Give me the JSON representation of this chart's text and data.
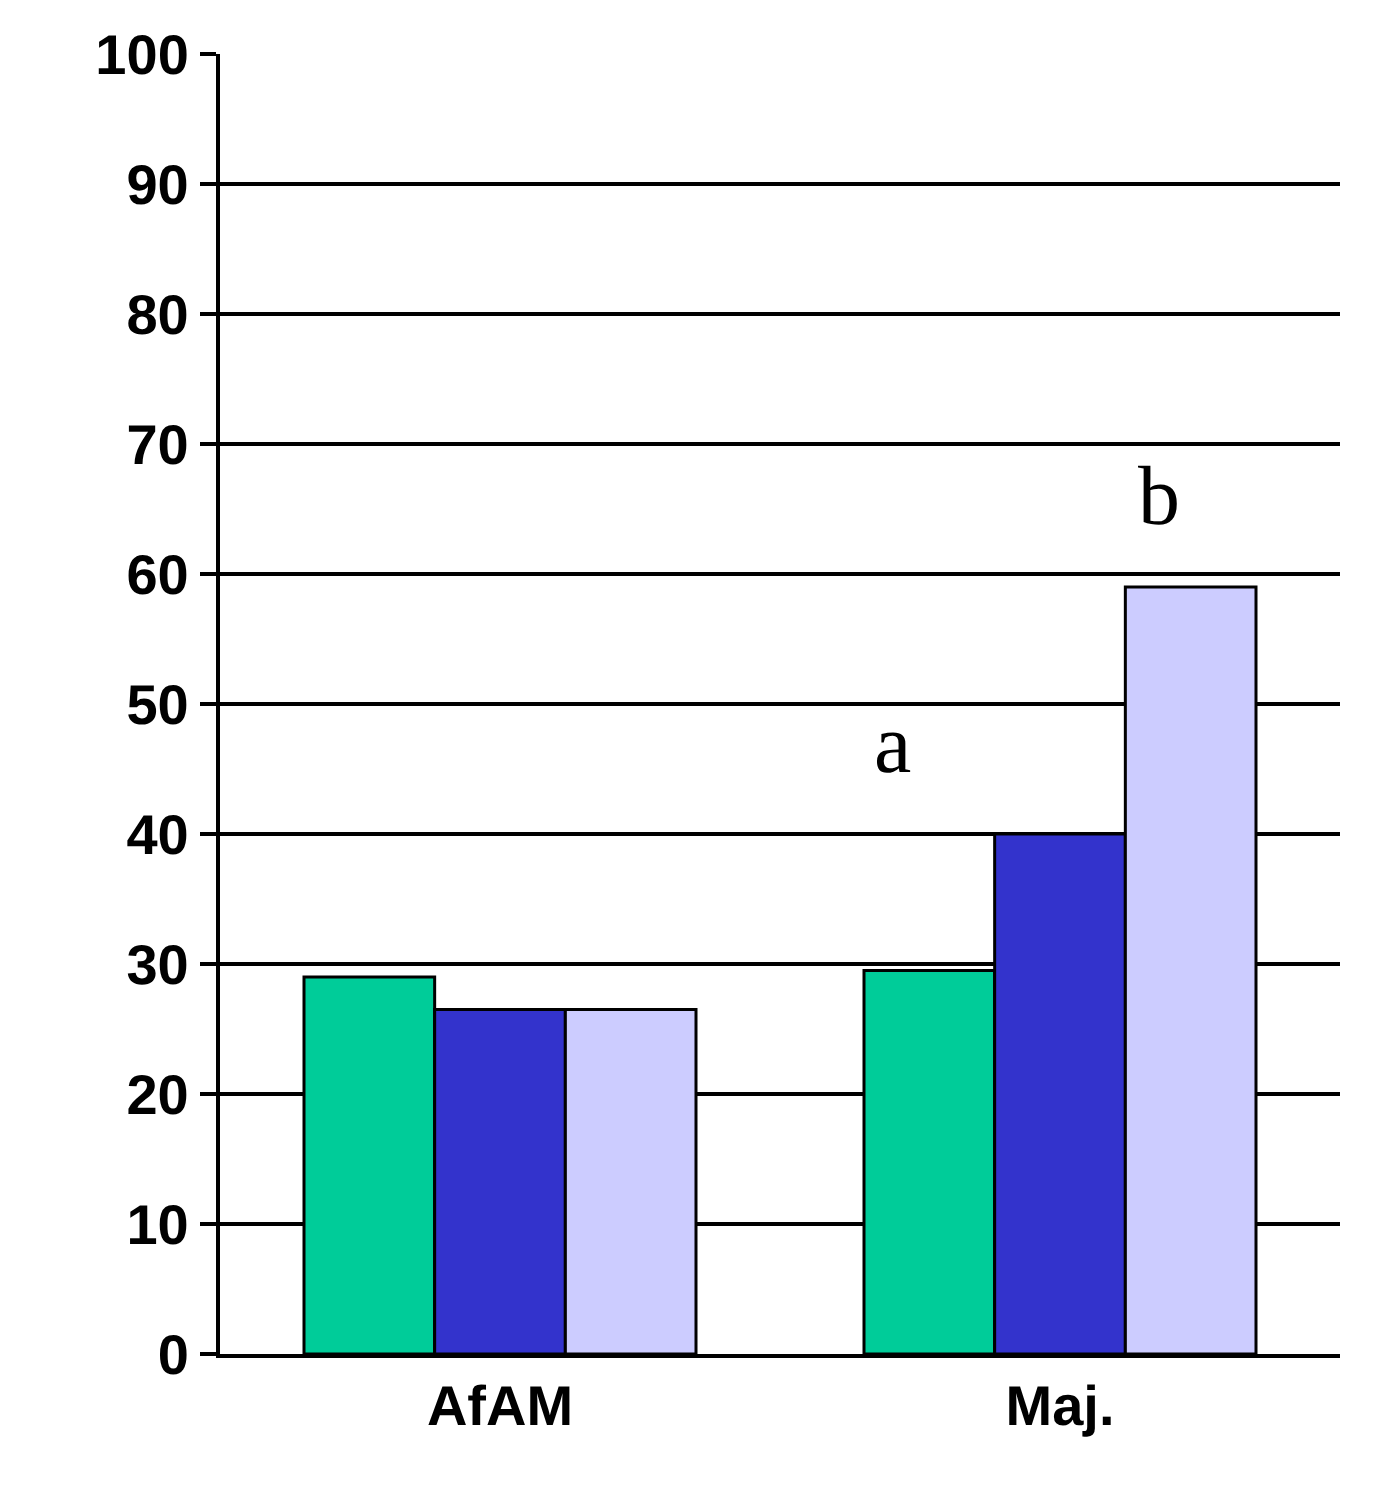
{
  "chart_data": {
    "type": "bar",
    "categories": [
      "AfAM",
      "Maj."
    ],
    "series": [
      {
        "color": "#00cc99",
        "values": [
          29,
          29.5
        ]
      },
      {
        "color": "#3333cc",
        "values": [
          26.5,
          40
        ]
      },
      {
        "color": "#ccccff",
        "values": [
          26.5,
          59
        ]
      }
    ],
    "ylim": [
      0,
      100
    ],
    "yticks": [
      0,
      10,
      20,
      30,
      40,
      50,
      60,
      70,
      80,
      90,
      100
    ],
    "grid": "y",
    "annotations": [
      "a",
      "b"
    ]
  }
}
